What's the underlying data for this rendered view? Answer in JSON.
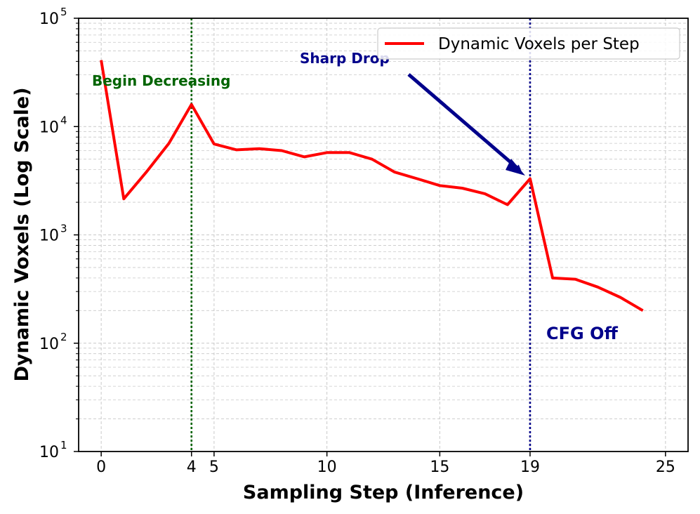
{
  "chart_data": {
    "type": "line",
    "xlabel": "Sampling Step (Inference)",
    "ylabel": "Dynamic Voxels (Log Scale)",
    "yscale": "log",
    "xlim": [
      -1,
      26
    ],
    "ylim": [
      10,
      100000
    ],
    "grid": true,
    "x_ticks": [
      0,
      4,
      5,
      10,
      15,
      19,
      25
    ],
    "y_ticks": [
      {
        "value": 10,
        "base": "10",
        "exp": "1"
      },
      {
        "value": 100,
        "base": "10",
        "exp": "2"
      },
      {
        "value": 1000,
        "base": "10",
        "exp": "3"
      },
      {
        "value": 10000,
        "base": "10",
        "exp": "4"
      },
      {
        "value": 100000,
        "base": "10",
        "exp": "5"
      }
    ],
    "series": [
      {
        "name": "Dynamic Voxels per Step",
        "color": "#ff0000",
        "x": [
          0,
          1,
          2,
          3,
          4,
          5,
          6,
          7,
          8,
          9,
          10,
          11,
          12,
          13,
          14,
          15,
          16,
          17,
          18,
          19,
          20,
          21,
          22,
          23,
          24
        ],
        "values": [
          41000,
          2150,
          3800,
          7000,
          16000,
          6900,
          6100,
          6250,
          6000,
          5250,
          5750,
          5750,
          5000,
          3800,
          3300,
          2850,
          2700,
          2400,
          1900,
          3300,
          400,
          390,
          330,
          265,
          200
        ]
      }
    ],
    "vlines": [
      {
        "x": 4,
        "color": "#006400",
        "label": "Begin Decreasing"
      },
      {
        "x": 19,
        "color": "#00008b",
        "label": "CFG Off"
      }
    ],
    "annotations": [
      {
        "text": "Sharp Drop",
        "color": "#00008b",
        "from": [
          14,
          24000
        ],
        "to": [
          19,
          3300
        ]
      }
    ],
    "legend": {
      "position": "top-right",
      "entries": [
        "Dynamic Voxels per Step"
      ]
    }
  }
}
